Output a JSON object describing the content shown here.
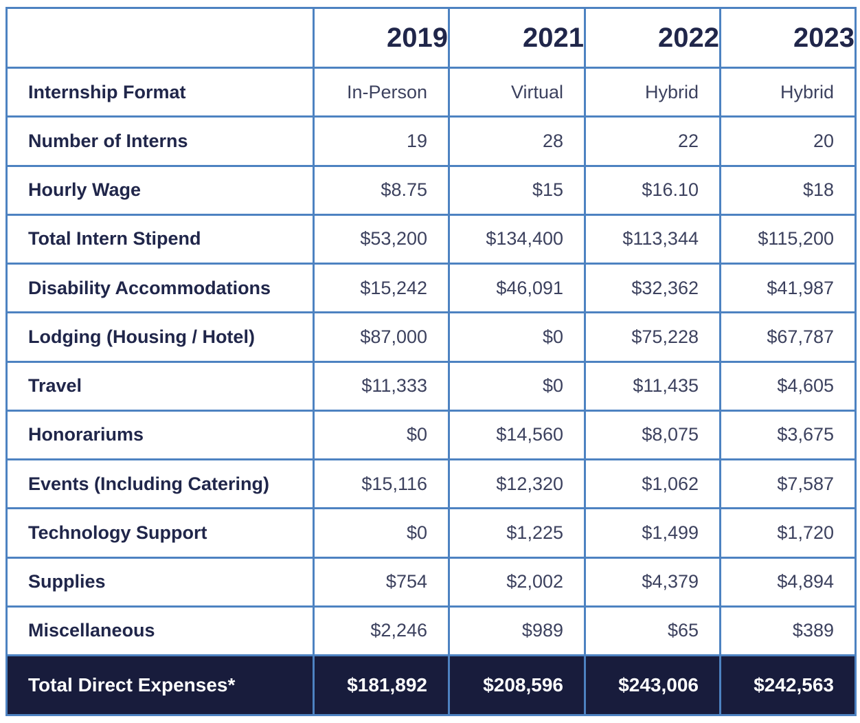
{
  "table": {
    "columns": [
      "",
      "2019",
      "2021",
      "2022",
      "2023"
    ],
    "rows": [
      {
        "label": "Internship Format",
        "values": [
          "In-Person",
          "Virtual",
          "Hybrid",
          "Hybrid"
        ]
      },
      {
        "label": "Number of Interns",
        "values": [
          "19",
          "28",
          "22",
          "20"
        ]
      },
      {
        "label": "Hourly Wage",
        "values": [
          "$8.75",
          "$15",
          "$16.10",
          "$18"
        ]
      },
      {
        "label": "Total Intern Stipend",
        "values": [
          "$53,200",
          "$134,400",
          "$113,344",
          "$115,200"
        ]
      },
      {
        "label": "Disability Accommodations",
        "values": [
          "$15,242",
          "$46,091",
          "$32,362",
          "$41,987"
        ]
      },
      {
        "label": "Lodging (Housing / Hotel)",
        "values": [
          "$87,000",
          "$0",
          "$75,228",
          "$67,787"
        ]
      },
      {
        "label": "Travel",
        "values": [
          "$11,333",
          "$0",
          "$11,435",
          "$4,605"
        ]
      },
      {
        "label": "Honorariums",
        "values": [
          "$0",
          "$14,560",
          "$8,075",
          "$3,675"
        ]
      },
      {
        "label": "Events (Including Catering)",
        "values": [
          "$15,116",
          "$12,320",
          "$1,062",
          "$7,587"
        ]
      },
      {
        "label": "Technology Support",
        "values": [
          "$0",
          "$1,225",
          "$1,499",
          "$1,720"
        ]
      },
      {
        "label": "Supplies",
        "values": [
          "$754",
          "$2,002",
          "$4,379",
          "$4,894"
        ]
      },
      {
        "label": "Miscellaneous",
        "values": [
          "$2,246",
          "$989",
          "$65",
          "$389"
        ]
      }
    ],
    "total_row": {
      "label": "Total Direct Expenses*",
      "values": [
        "$181,892",
        "$208,596",
        "$243,006",
        "$242,563"
      ]
    }
  },
  "colors": {
    "border_blue": "#4d82c1",
    "header_text": "#20264a",
    "value_text": "#3c415e",
    "total_row_background": "#181c3c",
    "total_row_text": "#ffffff",
    "cell_background": "#ffffff"
  },
  "chart_data": {
    "type": "table",
    "title": "",
    "columns": [
      "",
      "2019",
      "2021",
      "2022",
      "2023"
    ],
    "rows": [
      [
        "Internship Format",
        "In-Person",
        "Virtual",
        "Hybrid",
        "Hybrid"
      ],
      [
        "Number of Interns",
        19,
        28,
        22,
        20
      ],
      [
        "Hourly Wage",
        8.75,
        15,
        16.1,
        18
      ],
      [
        "Total Intern Stipend",
        53200,
        134400,
        113344,
        115200
      ],
      [
        "Disability Accommodations",
        15242,
        46091,
        32362,
        41987
      ],
      [
        "Lodging (Housing / Hotel)",
        87000,
        0,
        75228,
        67787
      ],
      [
        "Travel",
        11333,
        0,
        11435,
        4605
      ],
      [
        "Honorariums",
        0,
        14560,
        8075,
        3675
      ],
      [
        "Events (Including Catering)",
        15116,
        12320,
        1062,
        7587
      ],
      [
        "Technology Support",
        0,
        1225,
        1499,
        1720
      ],
      [
        "Supplies",
        754,
        2002,
        4379,
        4894
      ],
      [
        "Miscellaneous",
        2246,
        989,
        65,
        389
      ],
      [
        "Total Direct Expenses*",
        181892,
        208596,
        243006,
        242563
      ]
    ]
  }
}
